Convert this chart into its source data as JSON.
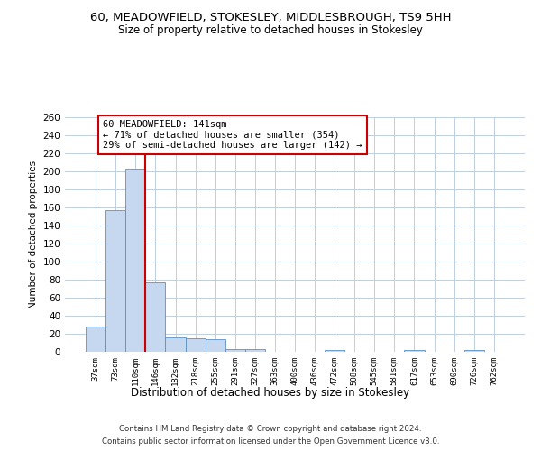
{
  "title1": "60, MEADOWFIELD, STOKESLEY, MIDDLESBROUGH, TS9 5HH",
  "title2": "Size of property relative to detached houses in Stokesley",
  "xlabel": "Distribution of detached houses by size in Stokesley",
  "ylabel": "Number of detached properties",
  "categories": [
    "37sqm",
    "73sqm",
    "110sqm",
    "146sqm",
    "182sqm",
    "218sqm",
    "255sqm",
    "291sqm",
    "327sqm",
    "363sqm",
    "400sqm",
    "436sqm",
    "472sqm",
    "508sqm",
    "545sqm",
    "581sqm",
    "617sqm",
    "653sqm",
    "690sqm",
    "726sqm",
    "762sqm"
  ],
  "values": [
    28,
    157,
    203,
    77,
    16,
    15,
    14,
    3,
    3,
    0,
    0,
    0,
    2,
    0,
    0,
    0,
    2,
    0,
    0,
    2,
    0
  ],
  "bar_color": "#c5d8f0",
  "bar_edge_color": "#5a8fc5",
  "highlight_line_color": "#cc0000",
  "annotation_text": "60 MEADOWFIELD: 141sqm\n← 71% of detached houses are smaller (354)\n29% of semi-detached houses are larger (142) →",
  "annotation_box_color": "#ffffff",
  "annotation_box_edge": "#cc0000",
  "footer1": "Contains HM Land Registry data © Crown copyright and database right 2024.",
  "footer2": "Contains public sector information licensed under the Open Government Licence v3.0.",
  "bg_color": "#ffffff",
  "grid_color": "#c0cfe0",
  "ylim": [
    0,
    260
  ],
  "yticks": [
    0,
    20,
    40,
    60,
    80,
    100,
    120,
    140,
    160,
    180,
    200,
    220,
    240,
    260
  ]
}
